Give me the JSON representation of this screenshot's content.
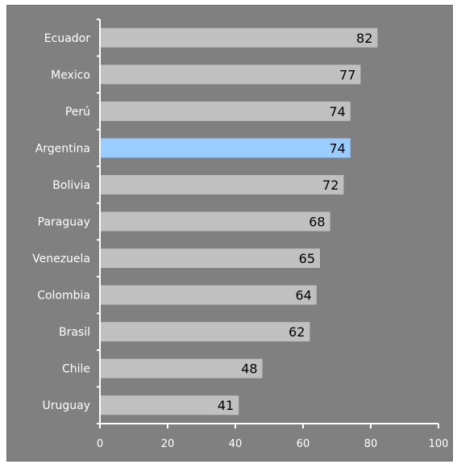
{
  "chart_data": {
    "type": "bar",
    "orientation": "horizontal",
    "categories": [
      "Ecuador",
      "Mexico",
      "Perú",
      "Argentina",
      "Bolivia",
      "Paraguay",
      "Venezuela",
      "Colombia",
      "Brasil",
      "Chile",
      "Uruguay"
    ],
    "values": [
      82,
      77,
      74,
      74,
      72,
      68,
      65,
      64,
      62,
      48,
      41
    ],
    "highlight": "Argentina",
    "xlim": [
      0,
      100
    ],
    "xticks": [
      "0",
      "20",
      "40",
      "60",
      "80",
      "100"
    ],
    "title": "",
    "xlabel": "",
    "ylabel": "",
    "grid": false,
    "data_labels": true,
    "colors": {
      "background": "#808080",
      "bar": "#c0c0c0",
      "highlight_bar": "#99ccff",
      "axis": "#ffffff",
      "category_text": "#ffffff",
      "value_text": "#000000"
    }
  }
}
